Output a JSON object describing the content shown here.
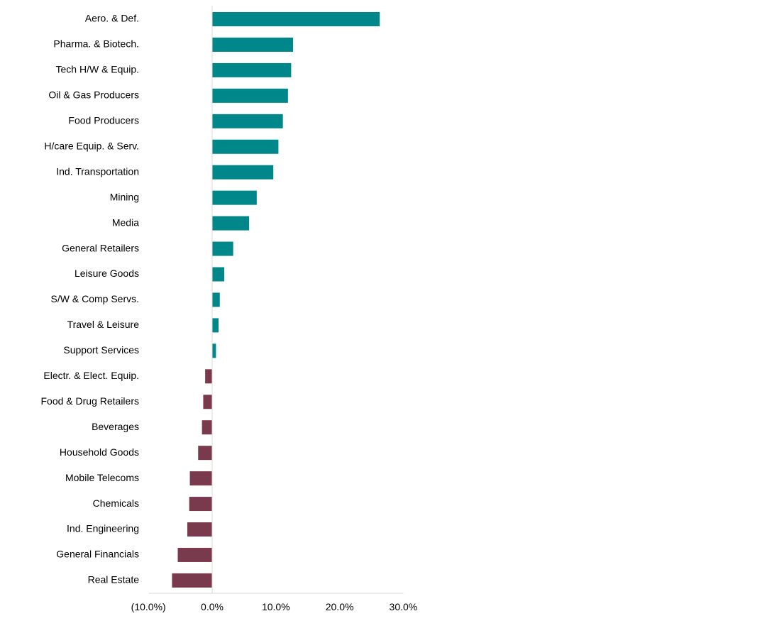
{
  "chart_data": {
    "type": "bar",
    "orientation": "horizontal",
    "title": "",
    "xlabel": "",
    "ylabel": "",
    "xlim": [
      -10,
      30
    ],
    "x_ticks": [
      -10,
      0,
      10,
      20,
      30
    ],
    "x_tick_labels": [
      "(10.0%)",
      "0.0%",
      "10.0%",
      "20.0%",
      "30.0%"
    ],
    "grid": false,
    "legend": "none",
    "colors": {
      "positive": "#00878A",
      "negative": "#7A3A4D",
      "axis": "#D9D9D9"
    },
    "categories": [
      "Aero. & Def.",
      "Pharma. & Biotech.",
      "Tech H/W & Equip.",
      "Oil & Gas Producers",
      "Food Producers",
      "H/care Equip. & Serv.",
      "Ind. Transportation",
      "Mining",
      "Media",
      "General Retailers",
      "Leisure Goods",
      "S/W & Comp Servs.",
      "Travel & Leisure",
      "Support Services",
      "Electr. & Elect. Equip.",
      "Food & Drug Retailers",
      "Beverages",
      "Household Goods",
      "Mobile Telecoms",
      "Chemicals",
      "Ind. Engineering",
      "General Financials",
      "Real Estate"
    ],
    "values": [
      26.3,
      12.7,
      12.4,
      11.9,
      11.1,
      10.4,
      9.6,
      7.0,
      5.8,
      3.3,
      1.9,
      1.2,
      1.0,
      0.6,
      -1.1,
      -1.4,
      -1.6,
      -2.2,
      -3.5,
      -3.6,
      -3.9,
      -5.4,
      -6.3
    ]
  }
}
